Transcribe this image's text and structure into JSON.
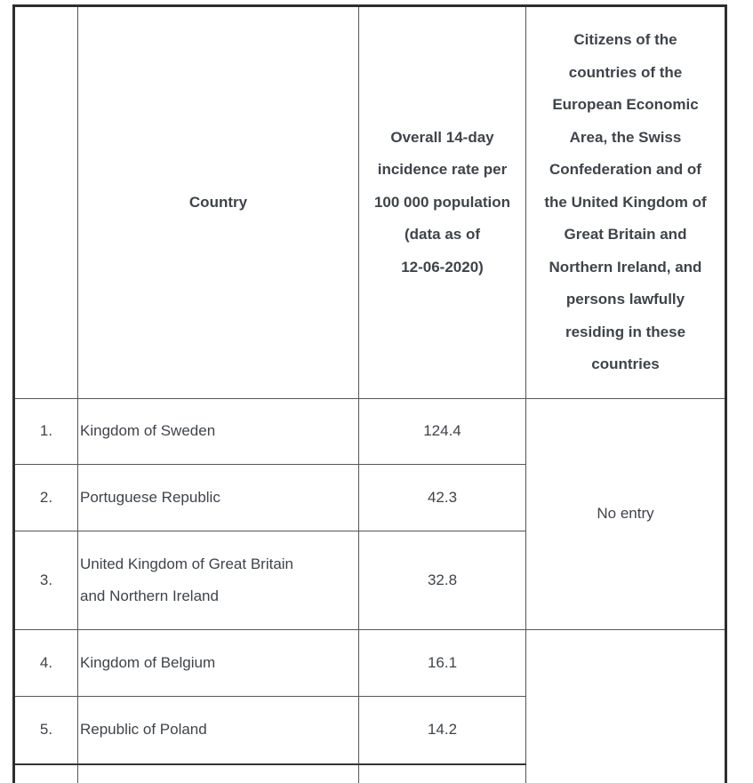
{
  "table": {
    "headers": {
      "num": "",
      "country": "Country",
      "rate": [
        "Overall 14-day",
        "incidence rate per",
        "100 000 population",
        "(data as of",
        "12-06-2020)"
      ],
      "citizens": [
        "Citizens of the",
        "countries of the",
        "European Economic",
        "Area, the Swiss",
        "Confederation and of",
        "the United Kingdom of",
        "Great Britain and",
        "Northern Ireland, and",
        "persons lawfully",
        "residing in these",
        "countries"
      ]
    },
    "rows": [
      {
        "num": "1.",
        "country": "Kingdom of Sweden",
        "rate": "124.4"
      },
      {
        "num": "2.",
        "country": "Portuguese Republic",
        "rate": "42.3"
      },
      {
        "num": "3.",
        "country": [
          "United Kingdom of Great Britain",
          "and Northern Ireland"
        ],
        "rate": "32.8"
      },
      {
        "num": "4.",
        "country": "Kingdom of Belgium",
        "rate": "16.1"
      },
      {
        "num": "5.",
        "country": "Republic of Poland",
        "rate": "14.2"
      }
    ],
    "merged": {
      "group1": "No entry",
      "group2": ""
    }
  },
  "colors": {
    "text": "#3f444a",
    "border_inner": "#565656",
    "border_outer": "#2e2e2e"
  }
}
